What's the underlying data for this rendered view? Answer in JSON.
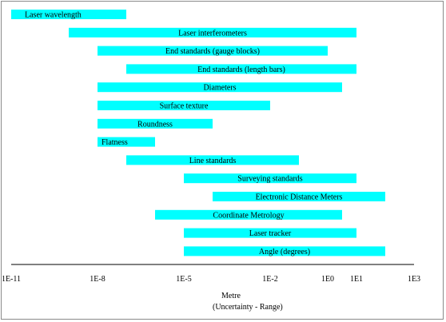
{
  "chart_data": {
    "type": "bar",
    "orientation": "horizontal-range",
    "scale": "log10",
    "xlim": [
      -11,
      3
    ],
    "xticks": [
      {
        "value": -11,
        "label": "1E-11"
      },
      {
        "value": -8,
        "label": "1E-8"
      },
      {
        "value": -5,
        "label": "1E-5"
      },
      {
        "value": -2,
        "label": "1E-2"
      },
      {
        "value": 0,
        "label": "1E0"
      },
      {
        "value": 1,
        "label": "1E1"
      },
      {
        "value": 3,
        "label": "1E3"
      }
    ],
    "xlabel": "Metre",
    "xlabel_sub": "(Uncertainty - Range)",
    "bar_color": "#00ffff",
    "bars": [
      {
        "label": "Laser wavelength",
        "start": -11,
        "end": -7,
        "label_align": "left"
      },
      {
        "label": "Laser interferometers",
        "start": -9,
        "end": 1,
        "label_align": "center"
      },
      {
        "label": "End standards (gauge blocks)",
        "start": -8,
        "end": 0,
        "label_align": "center"
      },
      {
        "label": "End standards (length bars)",
        "start": -7,
        "end": 1,
        "label_align": "center"
      },
      {
        "label": "Diameters",
        "start": -8,
        "end": 0.5,
        "label_align": "center"
      },
      {
        "label": "Surface texture",
        "start": -8,
        "end": -2,
        "label_align": "center"
      },
      {
        "label": "Roundness",
        "start": -8,
        "end": -4,
        "label_align": "center"
      },
      {
        "label": "Flatness",
        "start": -8,
        "end": -6,
        "label_align": "left"
      },
      {
        "label": "Line standards",
        "start": -7,
        "end": -1,
        "label_align": "center"
      },
      {
        "label": "Surveying standards",
        "start": -5,
        "end": 1,
        "label_align": "center"
      },
      {
        "label": "Electronic Distance Meters",
        "start": -4,
        "end": 2,
        "label_align": "center"
      },
      {
        "label": "Coordinate Metrology",
        "start": -6,
        "end": 0.5,
        "label_align": "center"
      },
      {
        "label": "Laser tracker",
        "start": -5,
        "end": 1,
        "label_align": "center"
      },
      {
        "label": "Angle (degrees)",
        "start": -5,
        "end": 2,
        "label_align": "center"
      }
    ]
  }
}
